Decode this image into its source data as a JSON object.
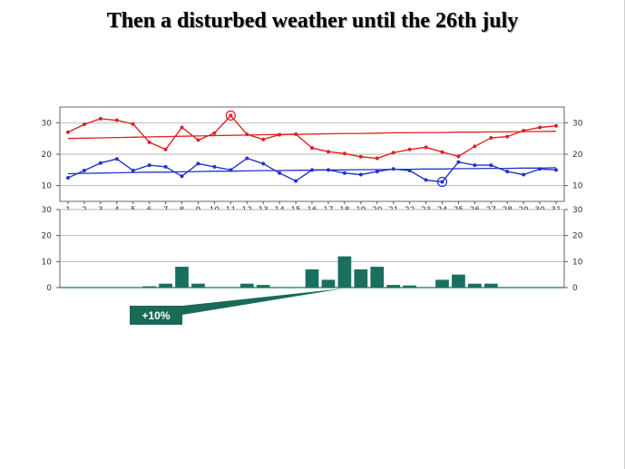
{
  "slide": {
    "title": "Then a disturbed weather until the 26th july"
  },
  "chart_data": {
    "type": "line",
    "x": [
      1,
      2,
      3,
      4,
      5,
      6,
      7,
      8,
      9,
      10,
      11,
      12,
      13,
      14,
      15,
      16,
      17,
      18,
      19,
      20,
      21,
      22,
      23,
      24,
      25,
      26,
      27,
      28,
      29,
      30,
      31
    ],
    "x_tick_labels": [
      "1",
      "2",
      "3",
      "4",
      "5",
      "6",
      "7",
      "8",
      "9",
      "10",
      "11",
      "12",
      "13",
      "14",
      "15",
      "16",
      "17",
      "18",
      "19",
      "20",
      "21",
      "22",
      "23",
      "24",
      "25",
      "26",
      "27",
      "28",
      "29",
      "30",
      "31"
    ],
    "temperature_panel": {
      "ylim": [
        5,
        35
      ],
      "y_ticks": [
        10,
        20,
        30
      ],
      "grid": true,
      "series": [
        {
          "color": "#dd2222",
          "values": [
            27,
            29.5,
            31.3,
            30.8,
            29.6,
            23.8,
            21.5,
            28.5,
            24.5,
            26.7,
            32.3,
            26.3,
            24.7,
            26.2,
            26.4,
            22,
            20.8,
            20.2,
            19.2,
            18.7,
            20.5,
            21.5,
            22.2,
            20.7,
            19.3,
            22.5,
            25.2,
            25.6,
            27.5,
            28.5,
            29
          ]
        },
        {
          "color": "#dd2222",
          "values": [
            25,
            25.1,
            25.2,
            25.3,
            25.4,
            25.5,
            25.6,
            25.7,
            25.8,
            25.9,
            26,
            26.1,
            26.2,
            26.3,
            26.3,
            26.4,
            26.5,
            26.6,
            26.6,
            26.7,
            26.8,
            26.8,
            26.9,
            26.9,
            27,
            27,
            27.1,
            27.1,
            27.2,
            27.2,
            27.3
          ]
        },
        {
          "color": "#2233cc",
          "values": [
            12.5,
            14.8,
            17.2,
            18.5,
            14.8,
            16.5,
            16,
            13,
            17,
            16,
            15,
            18.7,
            17,
            14,
            11.5,
            15,
            15,
            14,
            13.5,
            14.5,
            15.3,
            14.8,
            11.8,
            11.2,
            17.5,
            16.5,
            16.5,
            14.5,
            13.5,
            15.3,
            15
          ]
        },
        {
          "color": "#2233cc",
          "values": [
            13.8,
            13.9,
            14,
            14.1,
            14.2,
            14.3,
            14.3,
            14.4,
            14.5,
            14.6,
            14.6,
            14.7,
            14.8,
            14.8,
            14.9,
            14.9,
            15,
            15,
            15.1,
            15.1,
            15.2,
            15.2,
            15.3,
            15.3,
            15.4,
            15.4,
            15.5,
            15.5,
            15.6,
            15.6,
            15.7
          ]
        }
      ],
      "highlighted_points": [
        {
          "series": 0,
          "day": 11
        },
        {
          "series": 2,
          "day": 24
        }
      ]
    },
    "rain_panel": {
      "type": "bar",
      "ylim": [
        0,
        30
      ],
      "y_ticks": [
        0,
        10,
        20,
        30
      ],
      "grid": true,
      "color": "#1a7060",
      "values": [
        0,
        0,
        0,
        0,
        0,
        0.5,
        1.5,
        8,
        1.5,
        0,
        0,
        1.5,
        1,
        0,
        0,
        7,
        3,
        12,
        7,
        8,
        1,
        0.8,
        0,
        3,
        5,
        1.5,
        1.5,
        0,
        0,
        0,
        0
      ]
    },
    "annotation": {
      "text": "+10%"
    }
  }
}
